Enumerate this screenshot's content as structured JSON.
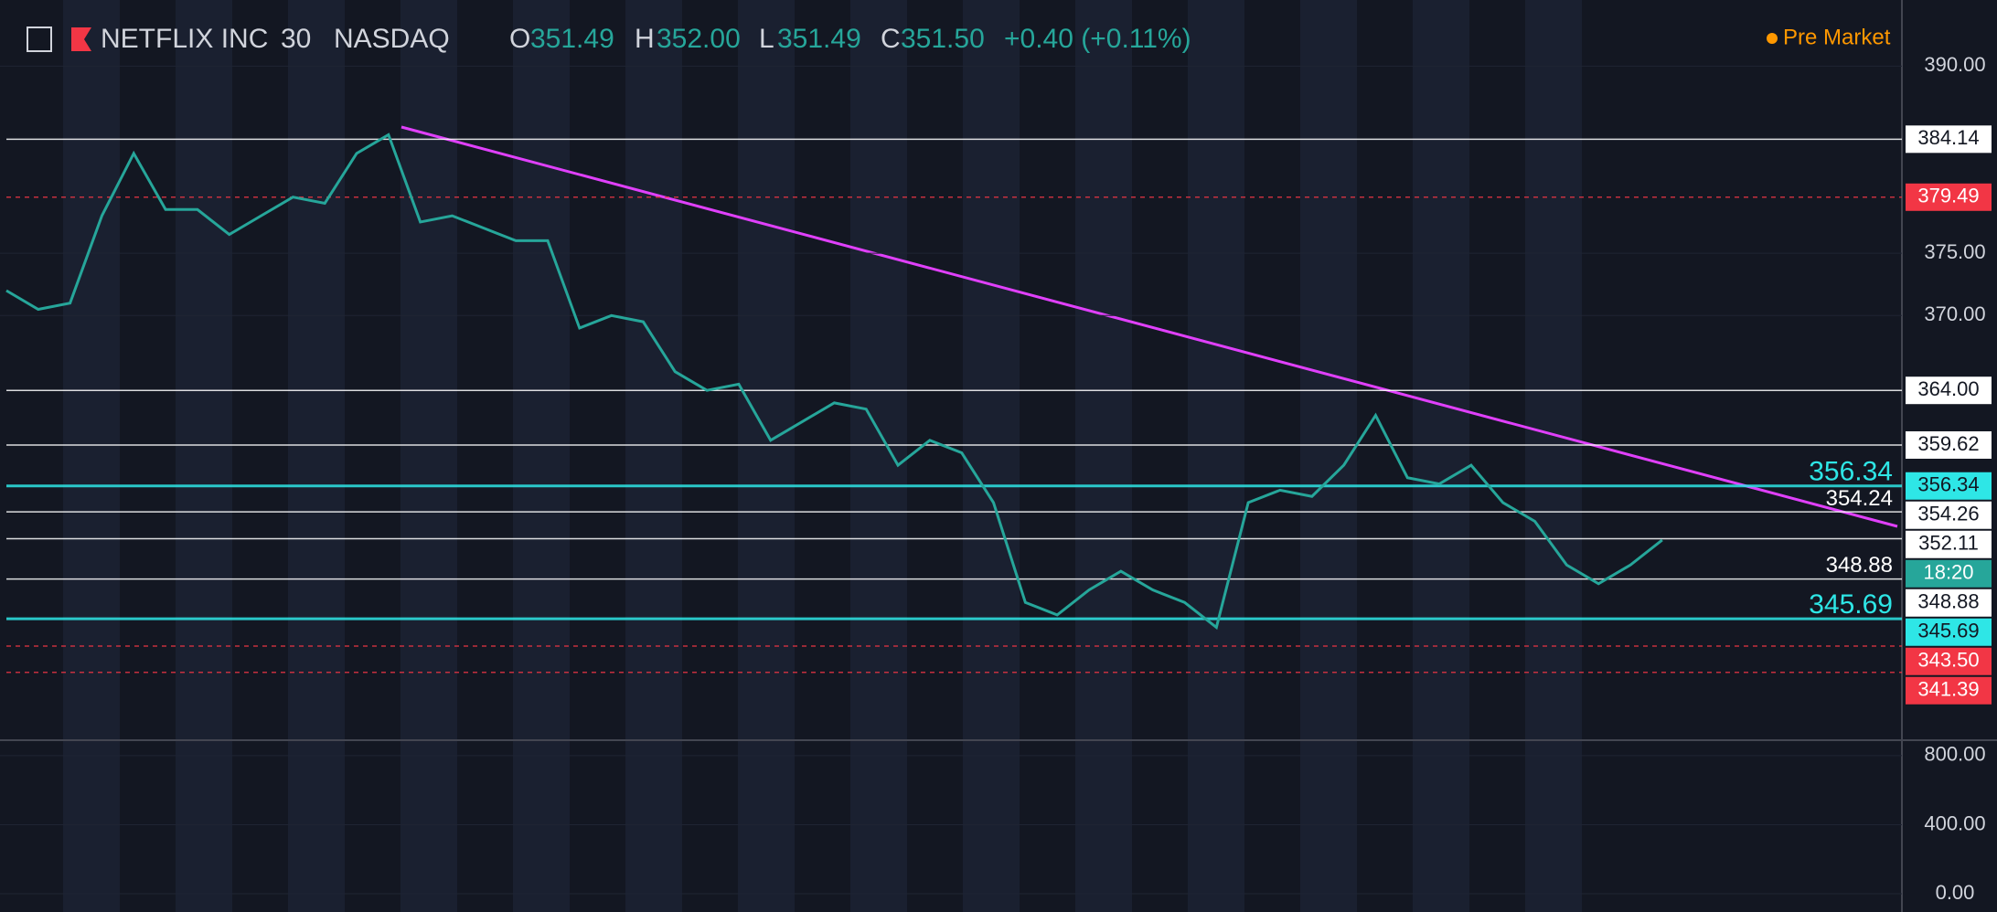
{
  "header": {
    "symbol": "NETFLIX INC",
    "interval": "30",
    "exchange": "NASDAQ",
    "open_label": "O",
    "open": "351.49",
    "high_label": "H",
    "high": "352.00",
    "low_label": "L",
    "low": "351.49",
    "close_label": "C",
    "close": "351.50",
    "change": "+0.40 (+0.11%)",
    "session": "Pre Market"
  },
  "chart_data": {
    "type": "line",
    "color": "#26a69a",
    "values": [
      372,
      370.5,
      371,
      378,
      383,
      378.5,
      378.5,
      376.5,
      378,
      379.5,
      379,
      383,
      384.5,
      377.5,
      378,
      377,
      376,
      376,
      369,
      370,
      369.5,
      365.5,
      364,
      364.5,
      360,
      361.5,
      363,
      362.5,
      358,
      360,
      359,
      355,
      347,
      346,
      348,
      349.5,
      348,
      347,
      345,
      355,
      356,
      355.5,
      358,
      362,
      357,
      356.5,
      358,
      355,
      353.5,
      350,
      348.5,
      350,
      352
    ],
    "ylim": [
      336.1,
      395.3
    ],
    "yticks": [
      {
        "value": 390,
        "label": "390.00"
      },
      {
        "value": 375,
        "label": "375.00"
      },
      {
        "value": 370,
        "label": "370.00"
      }
    ],
    "levels": [
      {
        "value": 384.14,
        "label": "384.14",
        "color": "#ffffff"
      },
      {
        "value": 379.49,
        "label": "379.49",
        "color": "#f23645"
      },
      {
        "value": 364,
        "label": "364.00",
        "color": "#ffffff"
      },
      {
        "value": 359.62,
        "label": "359.62",
        "color": "#ffffff"
      },
      {
        "value": 356.34,
        "label": "356.34",
        "color": "#2ee6e6"
      },
      {
        "value": 354.26,
        "label": "354.26",
        "color": "#ffffff"
      },
      {
        "value": 352.11,
        "label": "352.11",
        "color": "#ffffff"
      },
      {
        "value": 348.88,
        "label": "348.88",
        "color": "#ffffff"
      },
      {
        "value": 345.69,
        "label": "345.69",
        "color": "#2ee6e6"
      },
      {
        "value": 343.5,
        "label": "343.50",
        "color": "#f23645"
      },
      {
        "value": 341.39,
        "label": "341.39",
        "color": "#f23645"
      }
    ],
    "countdown": "18:20",
    "chart_labels": [
      {
        "value": 356.34,
        "label": "356.34"
      },
      {
        "value": 354.24,
        "label": "354.24"
      },
      {
        "value": 348.88,
        "label": "348.88"
      },
      {
        "value": 345.69,
        "label": "345.69"
      }
    ],
    "indicator": {
      "ylim": [
        -74,
        879
      ],
      "yticks": [
        {
          "value": 800,
          "label": "800.00"
        },
        {
          "value": 400,
          "label": "400.00"
        },
        {
          "value": 0,
          "label": "0.00"
        }
      ]
    }
  }
}
